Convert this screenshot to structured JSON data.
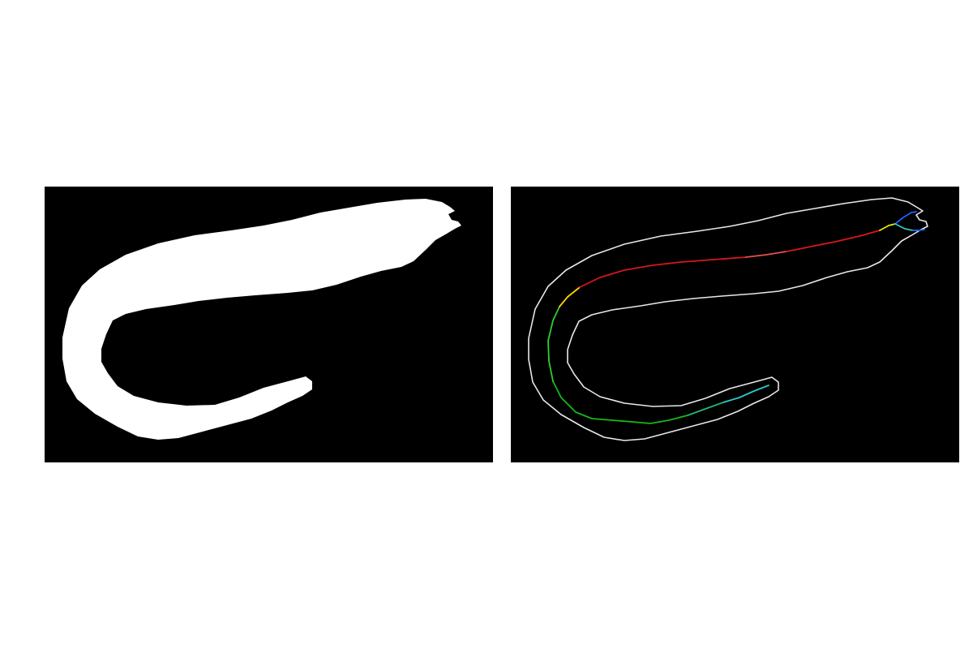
{
  "colors": {
    "background": "#ffffff",
    "panel_background": "#000000",
    "mask_fill": "#ffffff",
    "contour_stroke": "#e8e8e8"
  },
  "panels": [
    {
      "id": "mask",
      "content": "binary-eel-silhouette"
    },
    {
      "id": "skeleton",
      "content": "eel-contour-with-colored-midline",
      "midline_colors": [
        "#2ec8c8",
        "#22b87a",
        "#18b818",
        "#2dd02d",
        "#ffd400",
        "#d81818",
        "#e85050",
        "#d81818",
        "#e8e800",
        "#2060ff"
      ]
    }
  ]
}
